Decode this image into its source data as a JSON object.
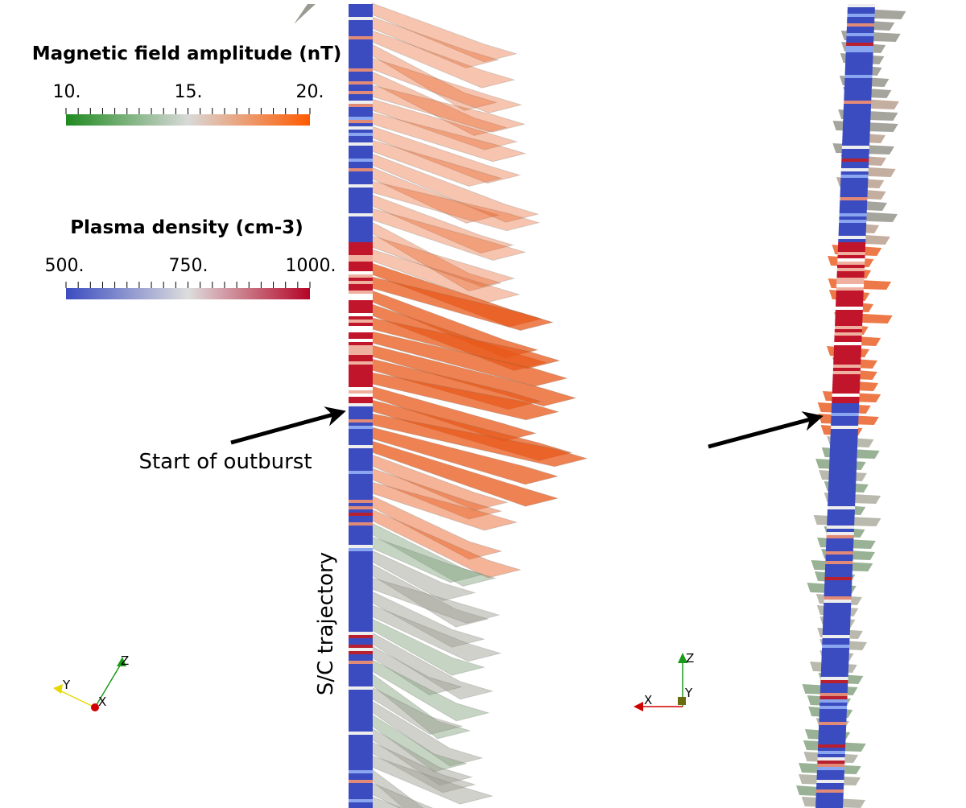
{
  "colorbars": {
    "magnetic": {
      "title": "Magnetic field amplitude (nT)",
      "ticks": [
        "10.",
        "15.",
        "20."
      ],
      "range": [
        10,
        20
      ],
      "colors": [
        "#1f8a1f",
        "#d9d9d9",
        "#ff5a00"
      ]
    },
    "density": {
      "title": "Plasma density (cm-3)",
      "ticks": [
        "500.",
        "750.",
        "1000."
      ],
      "range": [
        500,
        1000
      ],
      "colors": [
        "#3b4cc0",
        "#dddddd",
        "#b40426"
      ]
    }
  },
  "annotations": {
    "outburst_label": "Start of outburst",
    "trajectory_label": "S/C trajectory"
  },
  "axes": {
    "left": {
      "labels": [
        "Y",
        "X",
        "Z"
      ]
    },
    "right": {
      "labels": [
        "X",
        "Y",
        "Z"
      ]
    }
  },
  "colors": {
    "trajectory_base": "#3b4cc0",
    "high_density": "#c0152a",
    "arrow_orange": "#e8581a",
    "arrow_grey": "#9a9a8e",
    "arrow_green": "#7f9f7a",
    "axis_x": "#d00000",
    "axis_y": "#e6d800",
    "axis_z": "#1a9a1a"
  }
}
